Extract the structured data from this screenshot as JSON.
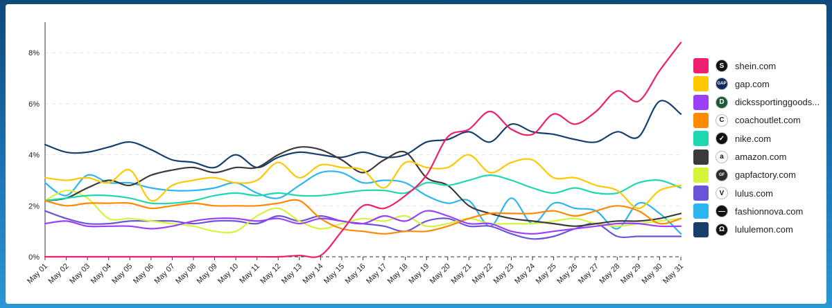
{
  "chart_data": {
    "type": "line",
    "x": [
      "May 01",
      "May 02",
      "May 03",
      "May 04",
      "May 05",
      "May 06",
      "May 07",
      "May 08",
      "May 09",
      "May 10",
      "May 11",
      "May 12",
      "May 13",
      "May 14",
      "May 15",
      "May 16",
      "May 17",
      "May 18",
      "May 19",
      "May 20",
      "May 21",
      "May 22",
      "May 23",
      "May 24",
      "May 25",
      "May 26",
      "May 27",
      "May 28",
      "May 29",
      "May 30",
      "May 31"
    ],
    "yticks": [
      "0%",
      "2%",
      "4%",
      "6%",
      "8%"
    ],
    "ylim": [
      0,
      9.2
    ],
    "grid": true,
    "legend_position": "right",
    "series": [
      {
        "name": "shein.com",
        "color": "#ee1f6f",
        "icon": "S",
        "icon_bg": "#111111",
        "values": [
          0,
          0,
          0,
          0,
          0,
          0,
          0,
          0,
          0,
          0,
          0,
          0,
          0.05,
          0.05,
          1.0,
          2.0,
          1.9,
          2.4,
          3.2,
          4.7,
          5.0,
          5.7,
          5.0,
          4.8,
          5.6,
          5.2,
          5.7,
          6.5,
          6.1,
          7.3,
          8.4
        ]
      },
      {
        "name": "gap.com",
        "color": "#ffc800",
        "icon": "GAP",
        "icon_bg": "#0e2a5c",
        "values": [
          3.1,
          3.0,
          3.1,
          2.9,
          3.4,
          2.2,
          2.8,
          3.0,
          3.1,
          2.9,
          3.0,
          3.7,
          3.1,
          3.6,
          3.5,
          3.4,
          2.7,
          3.7,
          3.5,
          3.5,
          4.0,
          3.3,
          3.7,
          3.8,
          3.1,
          3.1,
          2.8,
          2.6,
          1.9,
          2.6,
          2.8
        ]
      },
      {
        "name": "dickssportinggoods...",
        "color": "#9b3ffa",
        "icon": "D",
        "icon_bg": "#1c5a3a",
        "values": [
          1.3,
          1.4,
          1.2,
          1.2,
          1.2,
          1.1,
          1.2,
          1.4,
          1.5,
          1.5,
          1.4,
          1.5,
          1.3,
          1.5,
          1.4,
          1.3,
          1.6,
          1.4,
          1.8,
          1.6,
          1.3,
          1.3,
          1.0,
          0.9,
          1.0,
          1.1,
          1.2,
          1.3,
          1.3,
          1.2,
          1.2
        ]
      },
      {
        "name": "coachoutlet.com",
        "color": "#ff8a00",
        "icon": "C",
        "icon_bg": "#ffffff",
        "values": [
          2.2,
          2.0,
          2.1,
          2.1,
          2.1,
          1.9,
          2.0,
          2.1,
          2.0,
          2.0,
          2.0,
          2.1,
          2.2,
          1.5,
          1.1,
          1.0,
          0.9,
          1.0,
          1.0,
          1.2,
          1.5,
          1.7,
          1.7,
          1.7,
          1.8,
          1.6,
          1.8,
          2.0,
          1.8,
          1.3,
          1.5
        ]
      },
      {
        "name": "nike.com",
        "color": "#1ed8b0",
        "icon": "✓",
        "icon_bg": "#111111",
        "values": [
          2.2,
          2.3,
          2.4,
          2.4,
          2.3,
          2.1,
          2.1,
          2.2,
          2.4,
          2.5,
          2.4,
          2.5,
          2.4,
          2.4,
          2.5,
          2.6,
          2.6,
          2.5,
          2.9,
          2.8,
          3.0,
          3.2,
          3.0,
          2.7,
          2.5,
          2.7,
          2.5,
          2.5,
          2.9,
          3.0,
          2.7
        ]
      },
      {
        "name": "amazon.com",
        "color": "#3b3b3b",
        "icon": "a",
        "icon_bg": "#ffffff",
        "values": [
          2.2,
          2.3,
          2.7,
          3.0,
          2.8,
          3.2,
          3.4,
          3.5,
          3.3,
          3.5,
          3.5,
          4.0,
          4.3,
          4.2,
          3.8,
          3.3,
          3.8,
          4.1,
          3.1,
          2.8,
          2.0,
          1.7,
          1.5,
          1.4,
          1.3,
          1.2,
          1.3,
          1.4,
          1.4,
          1.5,
          1.7
        ]
      },
      {
        "name": "gapfactory.com",
        "color": "#d4f53a",
        "icon": "GF",
        "icon_bg": "#2d2d2d",
        "values": [
          2.2,
          2.6,
          2.3,
          1.5,
          1.5,
          1.4,
          1.3,
          1.2,
          1.0,
          1.0,
          1.6,
          1.9,
          1.4,
          1.1,
          1.3,
          1.5,
          1.4,
          1.6,
          1.2,
          1.3,
          1.5,
          1.3,
          1.3,
          1.3,
          1.4,
          1.5,
          1.3,
          1.2,
          1.3,
          1.4,
          1.5
        ]
      },
      {
        "name": "lulus.com",
        "color": "#6a55d8",
        "icon": "V",
        "icon_bg": "#ffffff",
        "values": [
          1.8,
          1.5,
          1.3,
          1.3,
          1.4,
          1.4,
          1.4,
          1.3,
          1.4,
          1.4,
          1.3,
          1.6,
          1.4,
          1.6,
          1.4,
          1.3,
          1.2,
          1.0,
          1.4,
          1.5,
          1.2,
          1.2,
          0.9,
          0.7,
          0.8,
          1.1,
          1.3,
          0.8,
          0.8,
          0.8,
          0.8
        ]
      },
      {
        "name": "fashionnova.com",
        "color": "#2db5f2",
        "icon": "—",
        "icon_bg": "#111111",
        "values": [
          2.9,
          2.4,
          3.2,
          2.9,
          2.9,
          2.7,
          2.6,
          2.6,
          2.7,
          2.9,
          2.5,
          2.3,
          2.8,
          3.3,
          3.3,
          2.9,
          3.0,
          2.9,
          2.4,
          2.1,
          2.2,
          1.2,
          2.3,
          1.3,
          2.1,
          1.9,
          1.8,
          1.1,
          2.1,
          1.7,
          0.9
        ]
      },
      {
        "name": "lululemon.com",
        "color": "#163f6b",
        "icon": "Ω",
        "icon_bg": "#111111",
        "values": [
          4.4,
          4.1,
          4.1,
          4.3,
          4.5,
          4.2,
          3.8,
          3.7,
          3.5,
          4.0,
          3.5,
          3.9,
          4.1,
          4.0,
          3.9,
          4.1,
          3.9,
          4.0,
          4.5,
          4.6,
          4.9,
          4.5,
          5.2,
          4.9,
          4.8,
          4.6,
          4.5,
          4.9,
          4.7,
          6.1,
          5.6
        ]
      }
    ]
  }
}
